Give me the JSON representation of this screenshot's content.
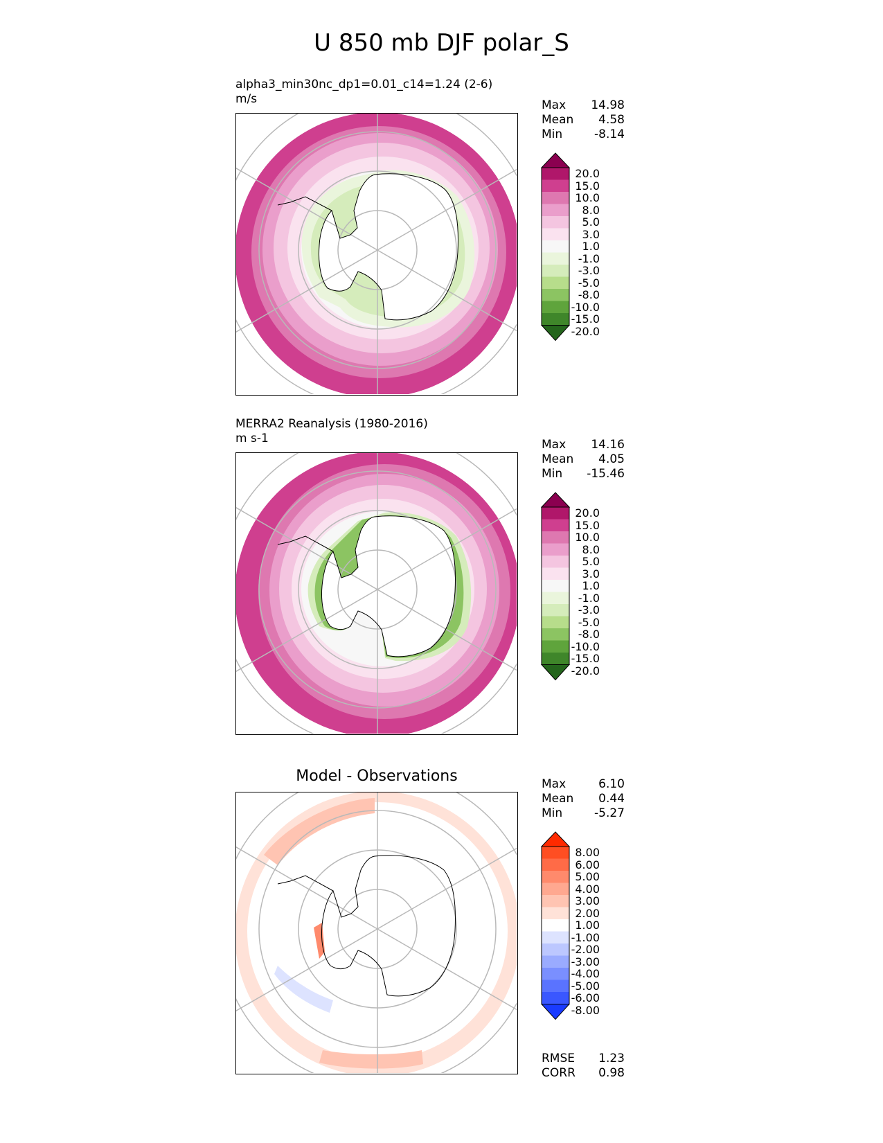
{
  "title": "U 850 mb DJF polar_S",
  "panels": [
    {
      "title_line1": "alpha3_min30nc_dp1=0.01_c14=1.24 (2-6)",
      "title_line2": "m/s",
      "stats": [
        {
          "label": "Max",
          "value": "14.98"
        },
        {
          "label": "Mean",
          "value": "4.58"
        },
        {
          "label": "Min",
          "value": "-8.14"
        }
      ],
      "colorbar": {
        "labels": [
          "20.0",
          "15.0",
          "10.0",
          "8.0",
          "5.0",
          "3.0",
          "1.0",
          "-1.0",
          "-3.0",
          "-5.0",
          "-8.0",
          "-10.0",
          "-15.0",
          "-20.0"
        ],
        "colors": [
          "#8b0050",
          "#b0176a",
          "#cf3f8f",
          "#de78b0",
          "#ea9ecb",
          "#f4c5e0",
          "#fae2ef",
          "#f7f7f7",
          "#eaf5dc",
          "#d5ecbb",
          "#b7dd8b",
          "#8cc462",
          "#5fa43c",
          "#3f862a",
          "#24651c"
        ]
      }
    },
    {
      "title_line1": "MERRA2 Reanalysis (1980-2016)",
      "title_line2": "m s-1",
      "stats": [
        {
          "label": "Max",
          "value": "14.16"
        },
        {
          "label": "Mean",
          "value": "4.05"
        },
        {
          "label": "Min",
          "value": "-15.46"
        }
      ],
      "colorbar": {
        "labels": [
          "20.0",
          "15.0",
          "10.0",
          "8.0",
          "5.0",
          "3.0",
          "1.0",
          "-1.0",
          "-3.0",
          "-5.0",
          "-8.0",
          "-10.0",
          "-15.0",
          "-20.0"
        ],
        "colors": [
          "#8b0050",
          "#b0176a",
          "#cf3f8f",
          "#de78b0",
          "#ea9ecb",
          "#f4c5e0",
          "#fae2ef",
          "#f7f7f7",
          "#eaf5dc",
          "#d5ecbb",
          "#b7dd8b",
          "#8cc462",
          "#5fa43c",
          "#3f862a",
          "#24651c"
        ]
      }
    },
    {
      "title_line1": "Model - Observations",
      "stats": [
        {
          "label": "Max",
          "value": "6.10"
        },
        {
          "label": "Mean",
          "value": "0.44"
        },
        {
          "label": "Min",
          "value": "-5.27"
        }
      ],
      "colorbar": {
        "labels": [
          "8.00",
          "6.00",
          "5.00",
          "4.00",
          "3.00",
          "2.00",
          "1.00",
          "-1.00",
          "-2.00",
          "-3.00",
          "-4.00",
          "-5.00",
          "-6.00",
          "-8.00"
        ],
        "colors": [
          "#ff2a00",
          "#ff4e22",
          "#ff6b47",
          "#ff8a6c",
          "#ffa890",
          "#ffc4b2",
          "#ffe2d8",
          "#ffffff",
          "#dde3ff",
          "#bcc7ff",
          "#9aabff",
          "#7a8fff",
          "#5a73ff",
          "#3a57ff",
          "#1a3bff"
        ]
      },
      "metrics": [
        {
          "label": "RMSE",
          "value": "1.23"
        },
        {
          "label": "CORR",
          "value": "0.98"
        }
      ]
    }
  ]
}
